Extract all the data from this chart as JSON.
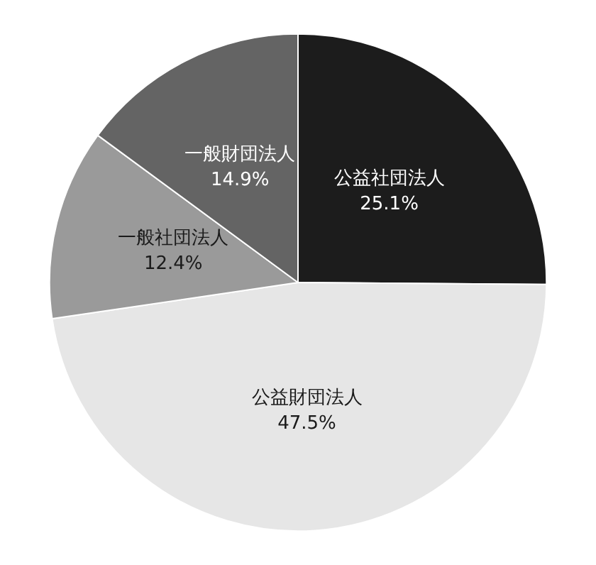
{
  "chart_data": {
    "type": "pie",
    "categories": [
      "公益社団法人",
      "公益財団法人",
      "一般社団法人",
      "一般財団法人"
    ],
    "values": [
      25.1,
      47.5,
      12.4,
      14.9
    ],
    "value_labels": [
      "25.1%",
      "47.5%",
      "12.4%",
      "14.9%"
    ],
    "colors": [
      "#1c1c1c",
      "#e6e6e6",
      "#9a9a9a",
      "#646464"
    ],
    "legend": false
  }
}
